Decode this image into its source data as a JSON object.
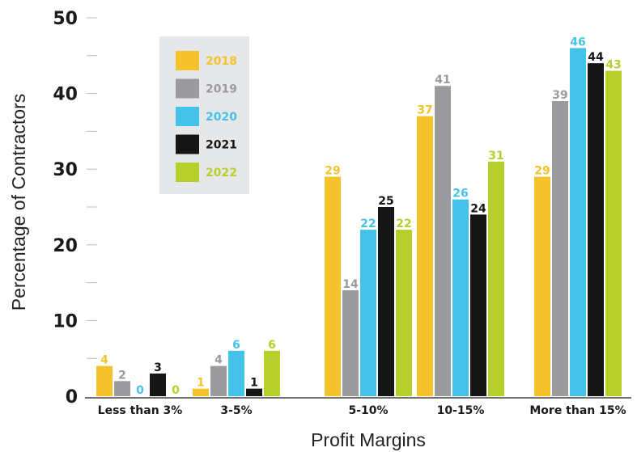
{
  "chart_data": {
    "type": "bar",
    "title": "",
    "xlabel": "Profit Margins",
    "ylabel": "Percentage of Contractors",
    "ylim": [
      0,
      50
    ],
    "yticks": [
      "0",
      "10",
      "20",
      "30",
      "40",
      "50"
    ],
    "categories": [
      "Less than 3%",
      "3-5%",
      "5-10%",
      "10-15%",
      "More than 15%"
    ],
    "series": [
      {
        "name": "2018",
        "color": "#f4c22b",
        "values": [
          4,
          1,
          29,
          37,
          29
        ]
      },
      {
        "name": "2019",
        "color": "#9b9b9e",
        "values": [
          2,
          4,
          14,
          41,
          39
        ]
      },
      {
        "name": "2020",
        "color": "#45c2ea",
        "values": [
          0,
          6,
          22,
          26,
          46
        ]
      },
      {
        "name": "2021",
        "color": "#151515",
        "values": [
          3,
          1,
          25,
          24,
          44
        ]
      },
      {
        "name": "2022",
        "color": "#b7cf2b",
        "values": [
          0,
          6,
          22,
          31,
          43
        ]
      }
    ],
    "grid": false,
    "legend": "top-left"
  }
}
